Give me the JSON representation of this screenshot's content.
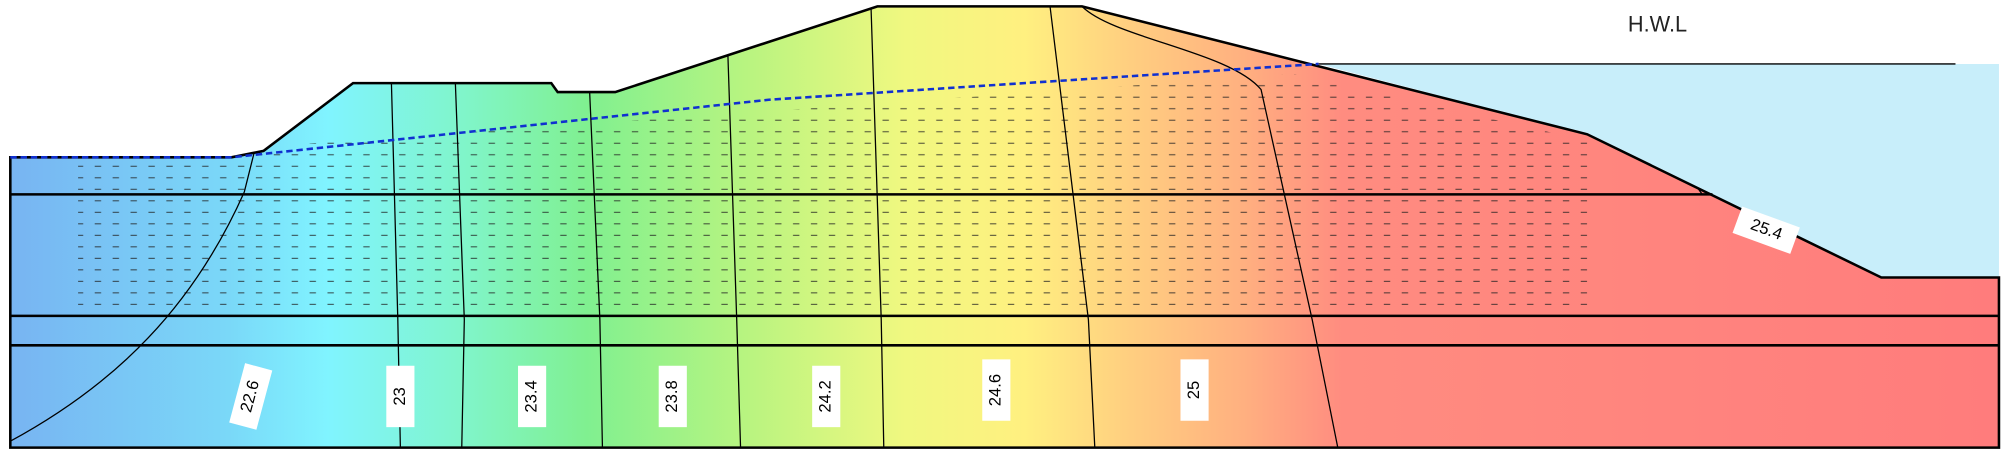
{
  "water_level": "H.W.L",
  "contours": {
    "labels": [
      "22.6",
      "23",
      "23.4",
      "23.8",
      "24.2",
      "24.6",
      "25",
      "25.4"
    ]
  }
}
